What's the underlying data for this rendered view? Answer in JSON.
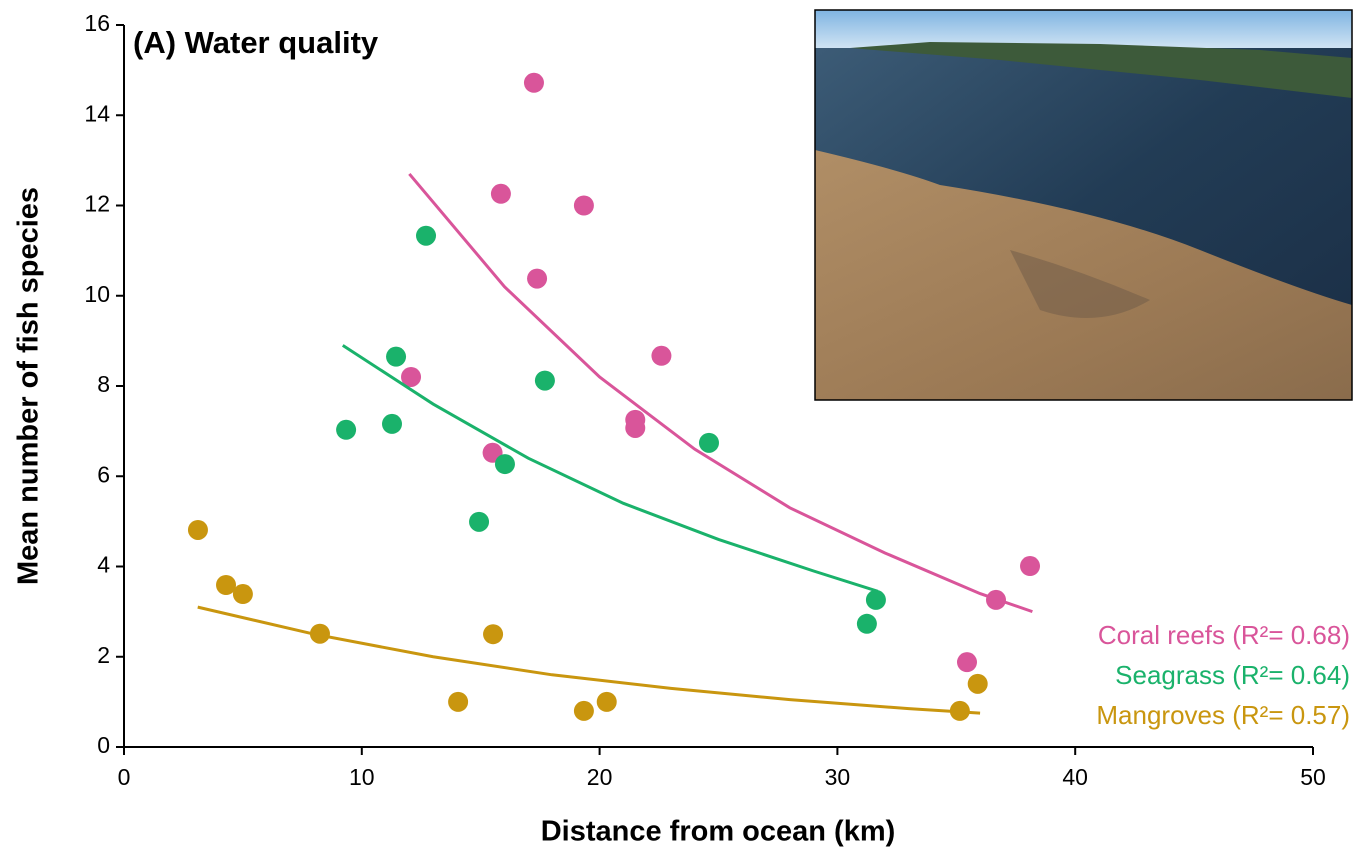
{
  "chart_data": {
    "type": "scatter",
    "title": "(A) Water quality",
    "x_label": "Distance from ocean (km)",
    "y_label": "Mean number of fish species",
    "xlim": [
      0,
      50
    ],
    "xticks": [
      0,
      10,
      20,
      30,
      40,
      50
    ],
    "ylim": [
      0,
      16
    ],
    "yticks": [
      0,
      2,
      4,
      6,
      8,
      10,
      12,
      14,
      16
    ],
    "series": [
      {
        "name": "Coral reefs (R²= 0.68)",
        "color": "#d9559a",
        "x": [
          12.07,
          15.5,
          15.85,
          17.24,
          17.37,
          19.34,
          21.5,
          21.5,
          22.6,
          36.67,
          38.1,
          35.45
        ],
        "values": [
          8.2,
          6.52,
          12.26,
          14.72,
          10.38,
          12.0,
          7.25,
          7.07,
          8.67,
          3.26,
          4.01,
          1.88
        ],
        "trend": {
          "x": [
            12,
            16,
            20,
            24,
            28,
            32,
            36,
            38.2
          ],
          "y": [
            12.7,
            10.2,
            8.2,
            6.6,
            5.3,
            4.3,
            3.4,
            3.0
          ]
        }
      },
      {
        "name": "Seagrass (R²= 0.64)",
        "color": "#1ab26b",
        "x": [
          9.34,
          11.27,
          11.44,
          12.7,
          14.93,
          16.02,
          17.7,
          24.6,
          31.24,
          31.62
        ],
        "values": [
          7.03,
          7.16,
          8.65,
          11.33,
          4.99,
          6.27,
          8.12,
          6.74,
          2.73,
          3.26
        ],
        "trend": {
          "x": [
            9.2,
            13,
            17,
            21,
            25,
            29,
            31.7
          ],
          "y": [
            8.9,
            7.6,
            6.4,
            5.4,
            4.6,
            3.9,
            3.45
          ]
        }
      },
      {
        "name": "Mangroves (R²= 0.57)",
        "color": "#c9960f",
        "x": [
          3.11,
          4.29,
          5.0,
          8.24,
          14.05,
          15.52,
          19.34,
          20.3,
          35.15,
          35.9
        ],
        "values": [
          4.81,
          3.59,
          3.39,
          2.51,
          1.0,
          2.5,
          0.8,
          1.0,
          0.8,
          1.4
        ],
        "trend": {
          "x": [
            3.1,
            8,
            13,
            18,
            23,
            28,
            33,
            36
          ],
          "y": [
            3.1,
            2.5,
            2.0,
            1.6,
            1.3,
            1.05,
            0.85,
            0.75
          ]
        }
      }
    ]
  }
}
